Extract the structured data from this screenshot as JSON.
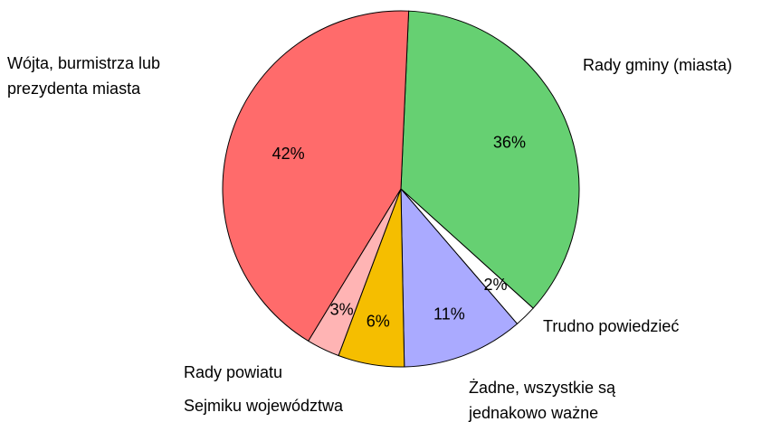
{
  "chart_data": {
    "type": "pie",
    "categories": [
      "Rady gminy (miasta)",
      "Trudno powiedzieć",
      "Żadne, wszystkie są jednakowo ważne",
      "Sejmiku województwa",
      "Rady powiatu",
      "Wójta, burmistrza lub prezydenta miasta"
    ],
    "values": [
      36,
      2,
      11,
      6,
      3,
      42
    ],
    "value_labels": [
      "36%",
      "2%",
      "11%",
      "6%",
      "3%",
      "42%"
    ],
    "colors": [
      "#66d072",
      "#ffffff",
      "#aaaaff",
      "#f5be00",
      "#ffb4b4",
      "#ff6b6b"
    ]
  }
}
